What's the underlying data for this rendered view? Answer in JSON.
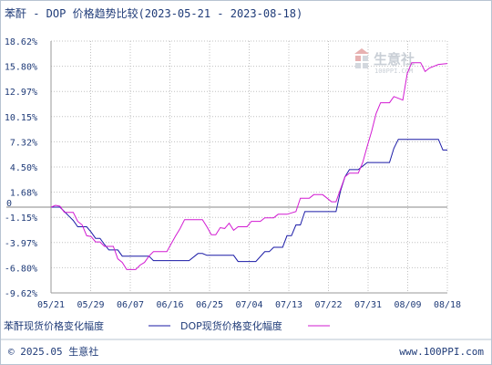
{
  "chart_data": {
    "type": "line",
    "title": "苯酐 - DOP 价格趋势比较(2023-05-21 - 2023-08-18)",
    "x_labels": [
      "05/21",
      "05/29",
      "06/07",
      "06/16",
      "06/25",
      "07/04",
      "07/13",
      "07/22",
      "07/31",
      "08/09",
      "08/18"
    ],
    "y_ticks": [
      "18.62%",
      "15.80%",
      "12.97%",
      "10.15%",
      "7.32%",
      "4.50%",
      "1.68%",
      "-1.15%",
      "-3.97%",
      "-6.80%",
      "-9.62%"
    ],
    "zero_label": "0",
    "ylim": [
      -9.62,
      18.62
    ],
    "x_range": [
      "2023-05-21",
      "2023-08-18"
    ],
    "grid": true,
    "legend_position": "bottom",
    "series": [
      {
        "name": "苯酐现货价格变化幅度",
        "color": "#1a1aa6",
        "points": [
          [
            "2023-05-21",
            0
          ],
          [
            "2023-05-23",
            0
          ],
          [
            "2023-05-24",
            -0.5
          ],
          [
            "2023-05-25",
            -1.0
          ],
          [
            "2023-05-26",
            -1.5
          ],
          [
            "2023-05-27",
            -2.2
          ],
          [
            "2023-05-29",
            -2.2
          ],
          [
            "2023-05-30",
            -2.8
          ],
          [
            "2023-05-31",
            -3.5
          ],
          [
            "2023-06-01",
            -3.5
          ],
          [
            "2023-06-02",
            -4.2
          ],
          [
            "2023-06-03",
            -4.8
          ],
          [
            "2023-06-05",
            -4.8
          ],
          [
            "2023-06-06",
            -5.5
          ],
          [
            "2023-06-10",
            -5.5
          ],
          [
            "2023-06-12",
            -5.5
          ],
          [
            "2023-06-13",
            -6.0
          ],
          [
            "2023-06-21",
            -6.0
          ],
          [
            "2023-06-23",
            -5.2
          ],
          [
            "2023-06-24",
            -5.2
          ],
          [
            "2023-06-25",
            -5.4
          ],
          [
            "2023-07-01",
            -5.4
          ],
          [
            "2023-07-02",
            -6.1
          ],
          [
            "2023-07-06",
            -6.1
          ],
          [
            "2023-07-08",
            -5.0
          ],
          [
            "2023-07-09",
            -5.0
          ],
          [
            "2023-07-10",
            -4.5
          ],
          [
            "2023-07-12",
            -4.5
          ],
          [
            "2023-07-13",
            -3.2
          ],
          [
            "2023-07-14",
            -3.2
          ],
          [
            "2023-07-15",
            -2.0
          ],
          [
            "2023-07-16",
            -2.0
          ],
          [
            "2023-07-17",
            -0.5
          ],
          [
            "2023-07-24",
            -0.5
          ],
          [
            "2023-07-25",
            1.8
          ],
          [
            "2023-07-26",
            3.4
          ],
          [
            "2023-07-27",
            4.2
          ],
          [
            "2023-07-29",
            4.2
          ],
          [
            "2023-07-31",
            5.0
          ],
          [
            "2023-08-05",
            5.0
          ],
          [
            "2023-08-06",
            6.6
          ],
          [
            "2023-08-07",
            7.6
          ],
          [
            "2023-08-16",
            7.6
          ],
          [
            "2023-08-17",
            6.4
          ],
          [
            "2023-08-18",
            6.4
          ]
        ]
      },
      {
        "name": "DOP现货价格变化幅度",
        "color": "#d21bd2",
        "points": [
          [
            "2023-05-21",
            0
          ],
          [
            "2023-05-22",
            0.2
          ],
          [
            "2023-05-23",
            0.1
          ],
          [
            "2023-05-24",
            -0.6
          ],
          [
            "2023-05-26",
            -0.6
          ],
          [
            "2023-05-27",
            -1.6
          ],
          [
            "2023-05-28",
            -2.0
          ],
          [
            "2023-05-29",
            -3.2
          ],
          [
            "2023-05-30",
            -3.3
          ],
          [
            "2023-05-31",
            -3.9
          ],
          [
            "2023-06-01",
            -3.9
          ],
          [
            "2023-06-02",
            -4.4
          ],
          [
            "2023-06-04",
            -4.4
          ],
          [
            "2023-06-05",
            -5.8
          ],
          [
            "2023-06-06",
            -6.2
          ],
          [
            "2023-06-07",
            -7.0
          ],
          [
            "2023-06-09",
            -7.0
          ],
          [
            "2023-06-10",
            -6.5
          ],
          [
            "2023-06-11",
            -6.2
          ],
          [
            "2023-06-12",
            -5.5
          ],
          [
            "2023-06-13",
            -5.0
          ],
          [
            "2023-06-16",
            -5.0
          ],
          [
            "2023-06-18",
            -3.2
          ],
          [
            "2023-06-19",
            -2.4
          ],
          [
            "2023-06-20",
            -1.4
          ],
          [
            "2023-06-24",
            -1.4
          ],
          [
            "2023-06-25",
            -2.2
          ],
          [
            "2023-06-26",
            -3.1
          ],
          [
            "2023-06-27",
            -3.1
          ],
          [
            "2023-06-28",
            -2.3
          ],
          [
            "2023-06-29",
            -2.4
          ],
          [
            "2023-06-30",
            -1.8
          ],
          [
            "2023-07-01",
            -2.6
          ],
          [
            "2023-07-02",
            -2.2
          ],
          [
            "2023-07-04",
            -2.2
          ],
          [
            "2023-07-05",
            -1.6
          ],
          [
            "2023-07-07",
            -1.6
          ],
          [
            "2023-07-08",
            -1.2
          ],
          [
            "2023-07-10",
            -1.2
          ],
          [
            "2023-07-11",
            -0.8
          ],
          [
            "2023-07-13",
            -0.8
          ],
          [
            "2023-07-15",
            -0.5
          ],
          [
            "2023-07-16",
            1.0
          ],
          [
            "2023-07-18",
            1.0
          ],
          [
            "2023-07-19",
            1.4
          ],
          [
            "2023-07-21",
            1.4
          ],
          [
            "2023-07-22",
            1.0
          ],
          [
            "2023-07-23",
            0.6
          ],
          [
            "2023-07-24",
            0.6
          ],
          [
            "2023-07-25",
            2.0
          ],
          [
            "2023-07-26",
            3.4
          ],
          [
            "2023-07-27",
            3.8
          ],
          [
            "2023-07-29",
            3.8
          ],
          [
            "2023-07-30",
            5.0
          ],
          [
            "2023-07-31",
            6.8
          ],
          [
            "2023-08-01",
            8.5
          ],
          [
            "2023-08-02",
            10.5
          ],
          [
            "2023-08-03",
            11.7
          ],
          [
            "2023-08-05",
            11.7
          ],
          [
            "2023-08-06",
            12.4
          ],
          [
            "2023-08-07",
            12.2
          ],
          [
            "2023-08-08",
            12.0
          ],
          [
            "2023-08-09",
            15.0
          ],
          [
            "2023-08-10",
            16.2
          ],
          [
            "2023-08-12",
            16.2
          ],
          [
            "2023-08-13",
            15.2
          ],
          [
            "2023-08-14",
            15.6
          ],
          [
            "2023-08-16",
            16.0
          ],
          [
            "2023-08-18",
            16.1
          ]
        ]
      }
    ]
  },
  "watermark": {
    "brand": "生意社",
    "site": "100PPI.COM"
  },
  "footer": {
    "copyright": "© 2025.05 生意社",
    "url": "www.100PPI.com"
  }
}
